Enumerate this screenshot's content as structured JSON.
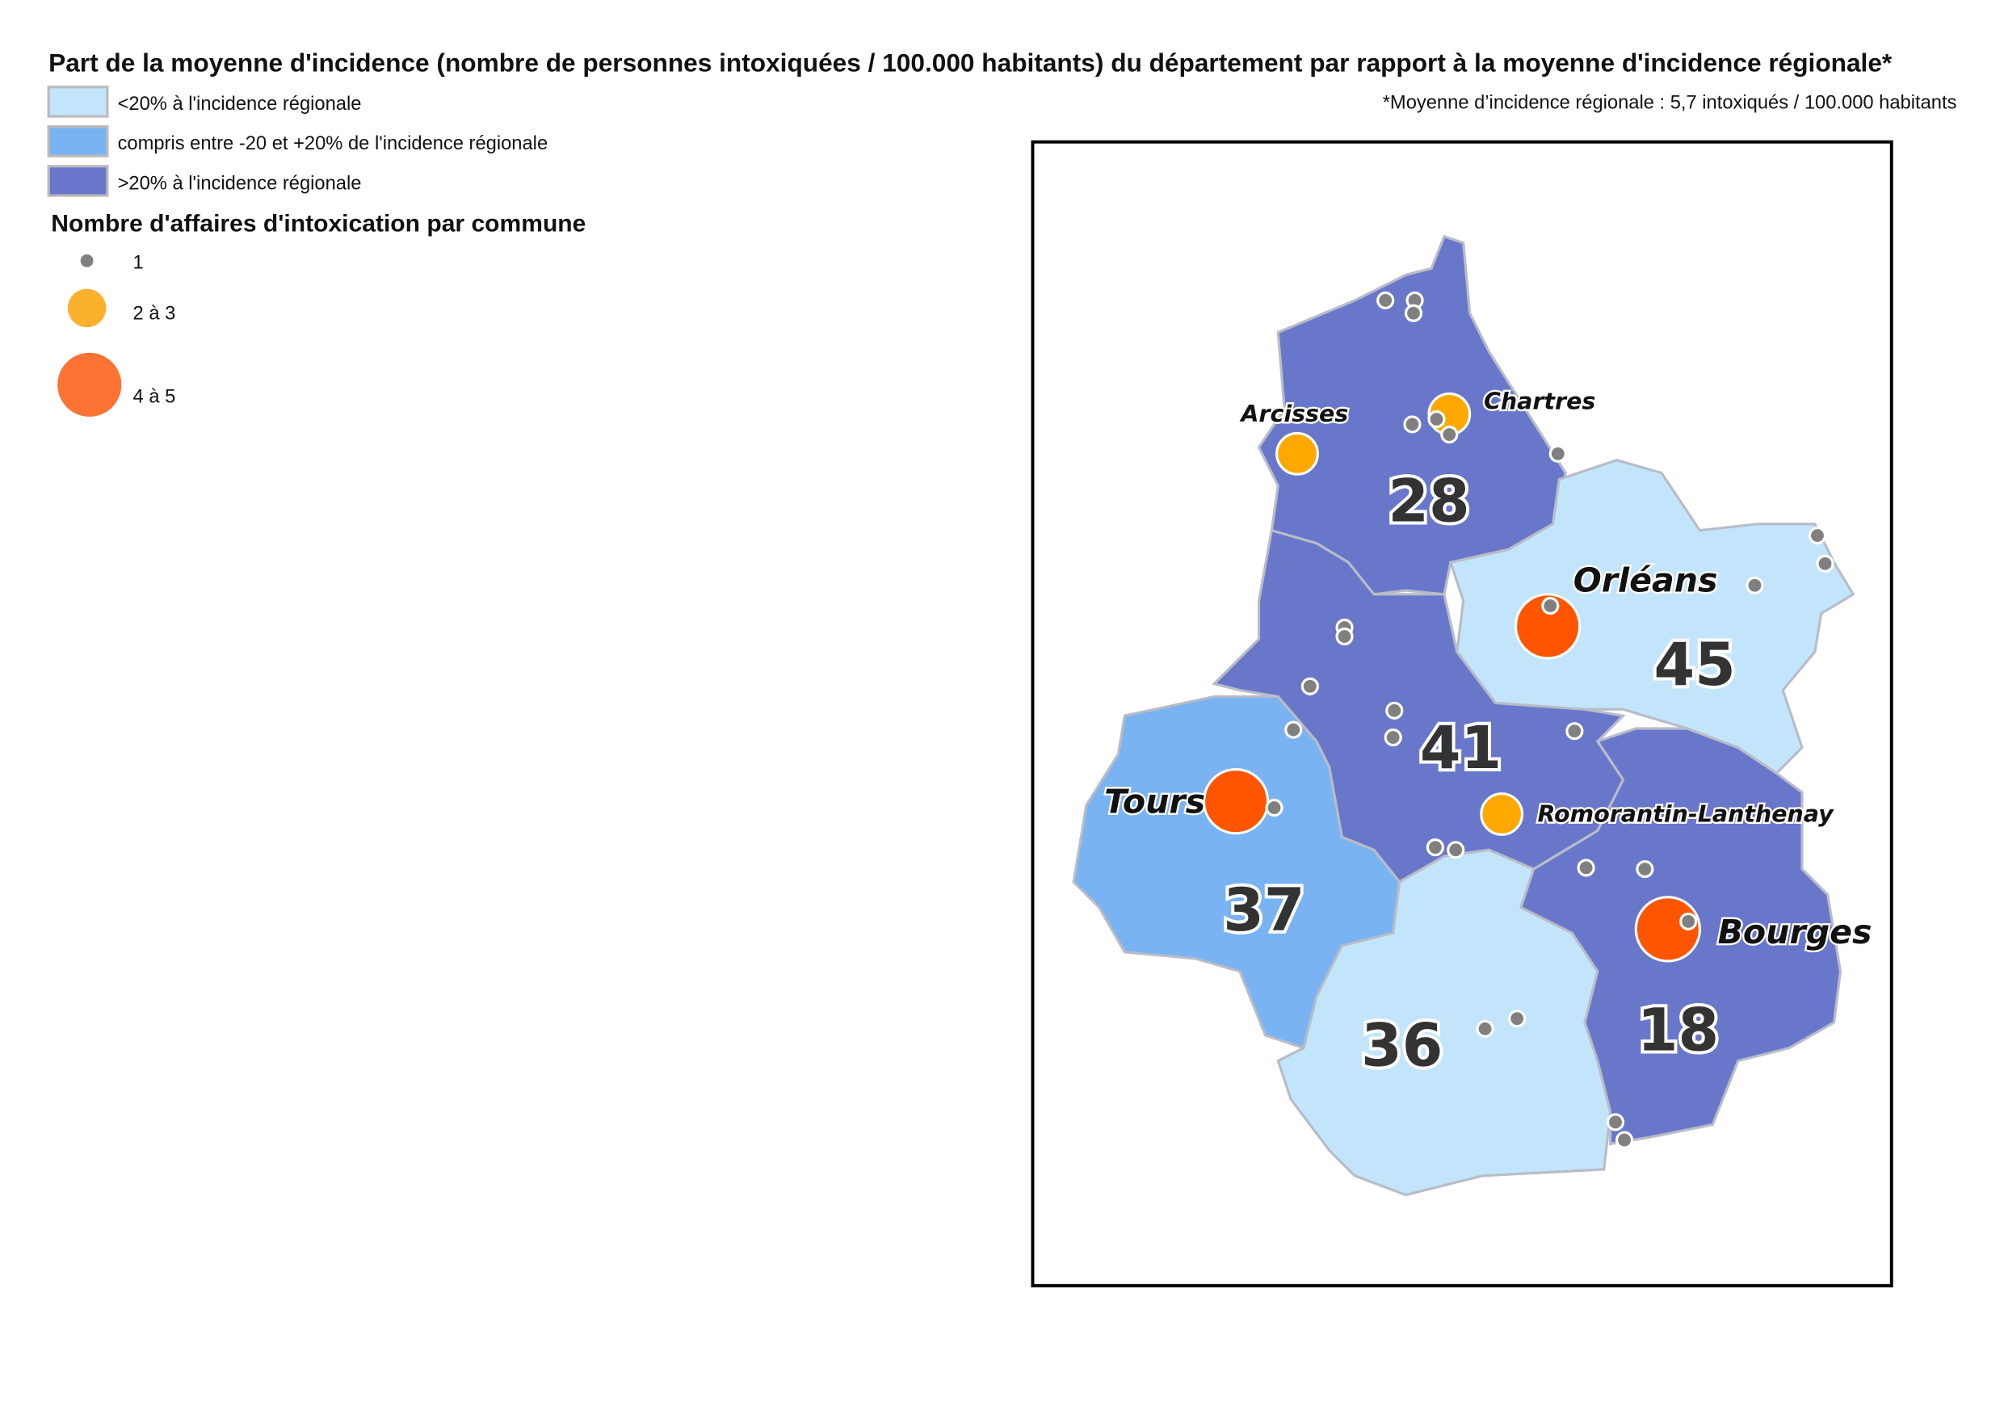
{
  "title": "Part de la moyenne d'incidence (nombre de personnes intoxiquées / 100.000 habitants) du département par rapport à la moyenne d'incidence régionale*",
  "footnote": "*Moyenne d’incidence régionale : 5,7 intoxiqués / 100.000 habitants",
  "incidence_legend": [
    {
      "label": "<20% à l'incidence régionale",
      "color": "#c3e5fb"
    },
    {
      "label": "compris entre -20 et +20% de l'incidence régionale",
      "color": "#7ab3f2"
    },
    {
      "label": ">20%  à l'incidence régionale",
      "color": "#6977cb"
    }
  ],
  "cases_legend": {
    "title": "Nombre d'affaires d'intoxication par commune",
    "items": [
      {
        "label": "1",
        "color": "#808080"
      },
      {
        "label": "2 à 3",
        "color": "#fbb12d"
      },
      {
        "label": "4 à 5",
        "color": "#fe7233"
      }
    ]
  },
  "departments": [
    {
      "number": "28",
      "category": "high"
    },
    {
      "number": "45",
      "category": "low"
    },
    {
      "number": "41",
      "category": "high"
    },
    {
      "number": "37",
      "category": "mid"
    },
    {
      "number": "36",
      "category": "low"
    },
    {
      "number": "18",
      "category": "high"
    }
  ],
  "cities": [
    {
      "name": "Chartres",
      "cases_class": "2 à 3"
    },
    {
      "name": "Arcisses",
      "cases_class": "2 à 3"
    },
    {
      "name": "Orléans",
      "cases_class": "4 à 5"
    },
    {
      "name": "Tours",
      "cases_class": "4 à 5"
    },
    {
      "name": "Romorantin-Lanthenay",
      "cases_class": "2 à 3"
    },
    {
      "name": "Bourges",
      "cases_class": "4 à 5"
    }
  ],
  "map_colors": {
    "orange_marker": "#ffa800",
    "red_marker": "#ff5500",
    "dot": "#808080"
  }
}
